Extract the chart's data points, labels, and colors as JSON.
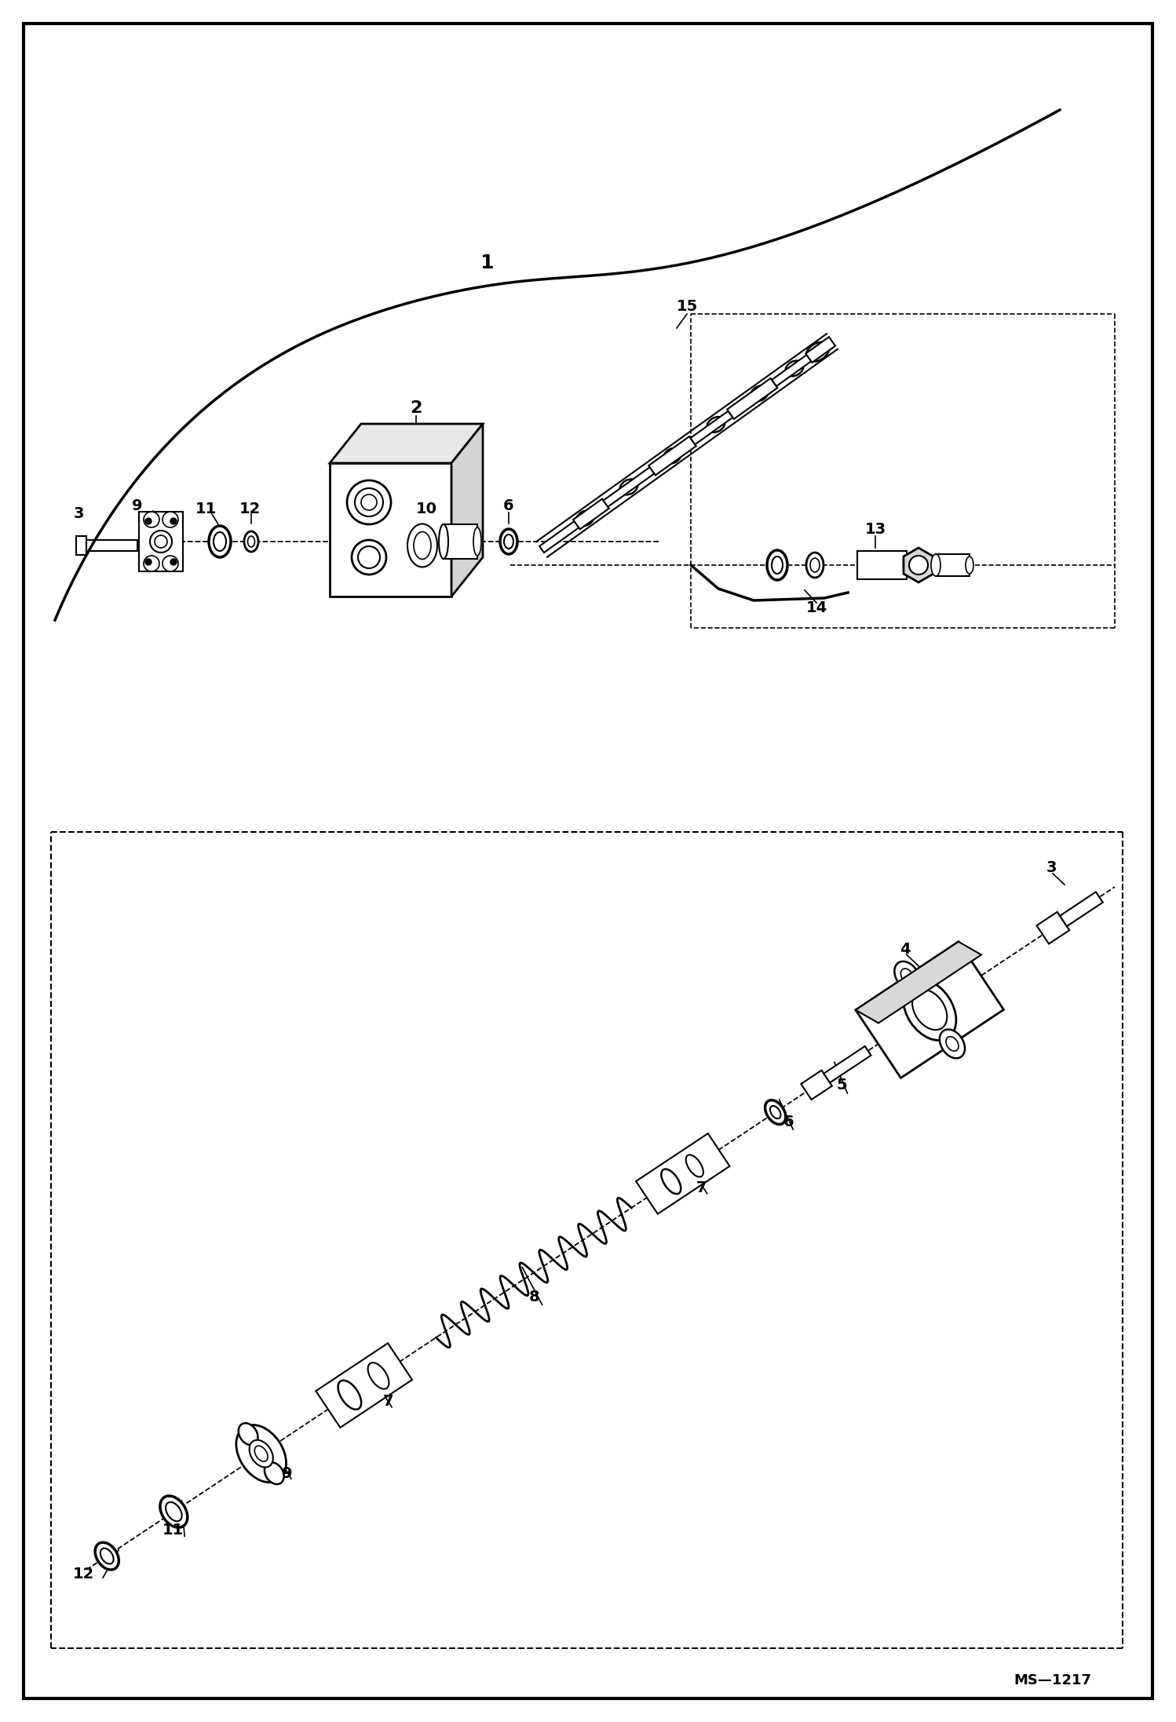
{
  "background_color": "#ffffff",
  "border_color": "#000000",
  "figure_width": 14.98,
  "figure_height": 21.94,
  "dpi": 100,
  "watermark": "MS—1217"
}
